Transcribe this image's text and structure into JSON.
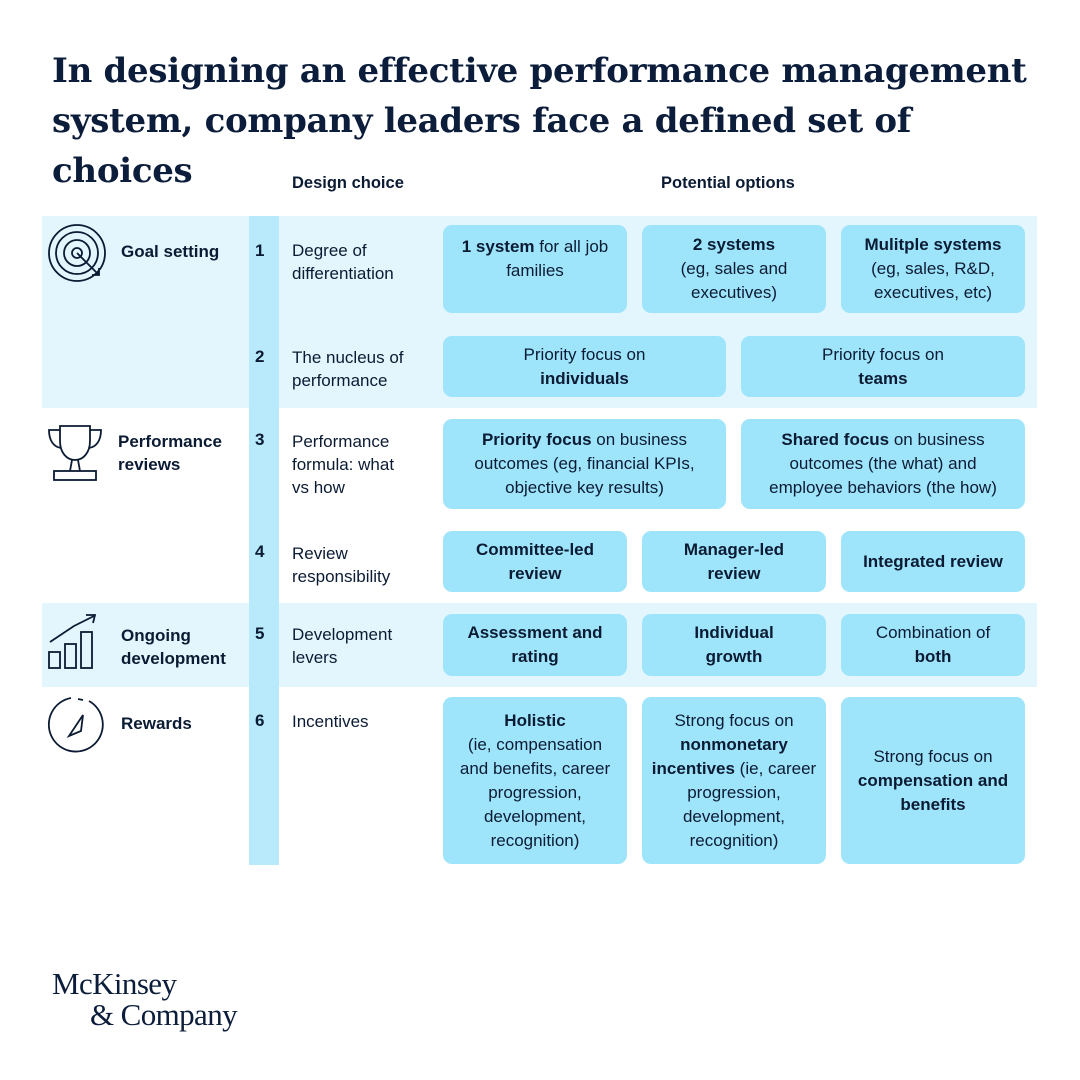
{
  "title": "In designing an effective performance management system, company leaders face a defined set of choices",
  "headers": {
    "design_choice": "Design choice",
    "potential_options": "Potential options"
  },
  "sections": {
    "goal_setting": "Goal setting",
    "performance_reviews_1": "Performance",
    "performance_reviews_2": "reviews",
    "ongoing_development_1": "Ongoing",
    "ongoing_development_2": "development",
    "rewards": "Rewards"
  },
  "rows": [
    {
      "num": "1",
      "choice_1": "Degree of",
      "choice_2": "differentiation",
      "options": [
        {
          "bold": "1 system",
          "text": " for all job families"
        },
        {
          "bold": "2 systems",
          "text": "(eg, sales and executives)"
        },
        {
          "bold": "Mulitple systems",
          "text": "(eg, sales, R&D, executives, etc)"
        }
      ]
    },
    {
      "num": "2",
      "choice_1": "The nucleus of",
      "choice_2": "performance",
      "options": [
        {
          "text": "Priority focus on",
          "bold": "individuals"
        },
        {
          "text": "Priority focus on",
          "bold": "teams"
        }
      ]
    },
    {
      "num": "3",
      "choice_1": "Performance",
      "choice_2": "formula: what",
      "choice_3": "vs how",
      "options": [
        {
          "bold": "Priority focus",
          "text": " on business outcomes (eg, financial KPIs, objective key results)"
        },
        {
          "bold": "Shared focus",
          "text": " on business outcomes (the what) and employee behaviors (the how)"
        }
      ]
    },
    {
      "num": "4",
      "choice_1": "Review",
      "choice_2": "responsibility",
      "options": [
        {
          "bold": "Committee-led review"
        },
        {
          "bold": "Manager-led review"
        },
        {
          "bold": "Integrated review"
        }
      ]
    },
    {
      "num": "5",
      "choice_1": "Development",
      "choice_2": "levers",
      "options": [
        {
          "bold": "Assessment and rating"
        },
        {
          "bold": "Individual growth"
        },
        {
          "text": "Combination of",
          "bold": "both"
        }
      ]
    },
    {
      "num": "6",
      "choice_1": "Incentives",
      "options": [
        {
          "bold": "Holistic",
          "text": "(ie, compensation and benefits, career progression, development, recognition)"
        },
        {
          "text": "Strong focus on",
          "bold": "nonmonetary incentives",
          "text2": " (ie, career progression, development, recognition)"
        },
        {
          "text": "Strong focus on",
          "bold": "compensation and benefits"
        }
      ]
    }
  ],
  "logo": {
    "line1": "McKinsey",
    "line2": "& Company"
  },
  "colors": {
    "band": "#e3f6fd",
    "number_column": "#b9eafb",
    "option_box": "#9ee5fb",
    "text": "#0b1b33"
  }
}
